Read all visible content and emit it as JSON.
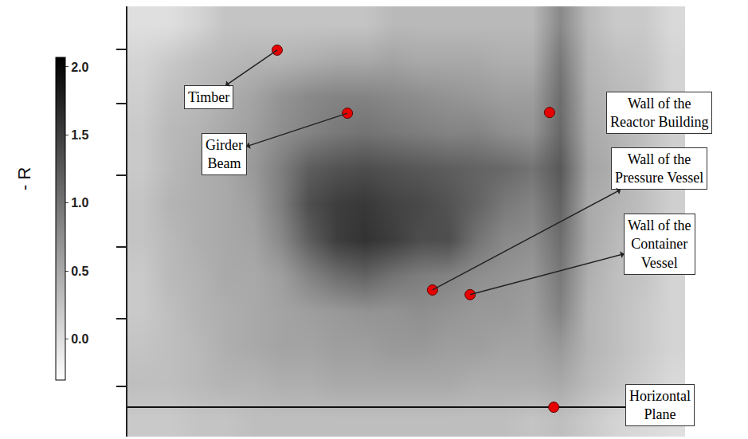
{
  "chart_data": {
    "type": "heatmap",
    "x": [
      0,
      1,
      2,
      3,
      4,
      5,
      6,
      7,
      8,
      9,
      10,
      11,
      12,
      13,
      14,
      15,
      16,
      17,
      18,
      19
    ],
    "y": [
      11,
      10,
      9,
      8,
      7,
      6,
      5,
      4,
      3,
      2,
      1,
      0
    ],
    "z": [
      [
        0.0,
        0.0,
        0.1,
        0.25,
        0.25,
        0.25,
        0.25,
        0.25,
        0.25,
        0.35,
        0.35,
        0.35,
        0.35,
        0.35,
        0.35,
        0.8,
        0.35,
        0.2,
        0.2,
        0.05
      ],
      [
        0.1,
        0.2,
        0.3,
        0.35,
        0.4,
        0.4,
        0.45,
        0.5,
        0.5,
        0.55,
        0.5,
        0.5,
        0.5,
        0.45,
        0.45,
        0.95,
        0.4,
        0.3,
        0.25,
        0.1
      ],
      [
        0.15,
        0.3,
        0.35,
        0.45,
        0.55,
        0.7,
        0.8,
        0.85,
        0.85,
        0.8,
        0.75,
        0.7,
        0.65,
        0.6,
        0.6,
        1.05,
        0.45,
        0.35,
        0.3,
        0.1
      ],
      [
        0.2,
        0.35,
        0.4,
        0.5,
        0.6,
        0.75,
        0.85,
        0.95,
        1.0,
        0.95,
        0.9,
        0.85,
        0.85,
        0.75,
        0.7,
        1.1,
        0.5,
        0.4,
        0.3,
        0.15
      ],
      [
        0.2,
        0.35,
        0.45,
        0.5,
        0.65,
        0.9,
        1.2,
        1.3,
        1.35,
        1.3,
        1.25,
        1.2,
        1.15,
        1.1,
        1.0,
        1.25,
        0.55,
        0.45,
        0.3,
        0.15
      ],
      [
        0.25,
        0.4,
        0.45,
        0.5,
        0.6,
        0.9,
        1.35,
        1.5,
        1.55,
        1.45,
        1.4,
        1.3,
        1.15,
        0.95,
        0.85,
        1.15,
        0.5,
        0.4,
        0.3,
        0.15
      ],
      [
        0.25,
        0.35,
        0.45,
        0.5,
        0.55,
        0.8,
        1.2,
        1.5,
        1.6,
        1.5,
        1.35,
        1.35,
        1.0,
        0.8,
        0.75,
        1.05,
        0.5,
        0.35,
        0.25,
        0.1
      ],
      [
        0.2,
        0.35,
        0.4,
        0.5,
        0.5,
        0.6,
        0.85,
        1.05,
        1.15,
        1.0,
        0.9,
        0.85,
        0.75,
        0.7,
        0.65,
        0.95,
        0.45,
        0.3,
        0.25,
        0.1
      ],
      [
        0.2,
        0.3,
        0.4,
        0.45,
        0.5,
        0.55,
        0.6,
        0.65,
        0.7,
        0.7,
        0.75,
        0.7,
        0.65,
        0.65,
        0.6,
        0.85,
        0.4,
        0.3,
        0.2,
        0.1
      ],
      [
        0.25,
        0.3,
        0.35,
        0.45,
        0.5,
        0.55,
        0.55,
        0.6,
        0.6,
        0.65,
        0.65,
        0.6,
        0.6,
        0.55,
        0.55,
        0.65,
        0.4,
        0.3,
        0.2,
        0.1
      ],
      [
        0.3,
        0.3,
        0.35,
        0.4,
        0.4,
        0.45,
        0.45,
        0.5,
        0.5,
        0.5,
        0.5,
        0.5,
        0.45,
        0.45,
        0.45,
        0.5,
        0.35,
        0.25,
        0.15,
        0.05
      ],
      [
        0.2,
        0.2,
        0.25,
        0.25,
        0.3,
        0.3,
        0.3,
        0.3,
        0.3,
        0.3,
        0.3,
        0.3,
        0.3,
        0.3,
        0.25,
        0.3,
        0.2,
        0.1,
        0.05,
        0.0
      ]
    ],
    "xlim": [
      -0.5,
      19.5
    ],
    "ylim": [
      -0.5,
      11.5
    ],
    "yticks": [
      10.3,
      8.8,
      6.8,
      4.8,
      2.8,
      0.9
    ],
    "tick_labels": false,
    "colors": [
      "#ffffff",
      "#000000"
    ],
    "colorbar": {
      "label": "- R",
      "zlim": [
        -0.3,
        2.07
      ],
      "zticks": [
        {
          "value": 2,
          "label": "2.0"
        },
        {
          "value": 1.5,
          "label": "1.5"
        },
        {
          "value": 1,
          "label": "1.0"
        },
        {
          "value": 0.5,
          "label": "0.5"
        },
        {
          "value": 0,
          "label": "0.0"
        }
      ]
    },
    "reference_line_y": 0.32,
    "annotations": [
      {
        "text": "Timber",
        "x": 4.87,
        "y": 10.28
      },
      {
        "text": "Girder\nBeam",
        "x": 7.39,
        "y": 8.52
      },
      {
        "text": "Wall of the\nReactor Building",
        "x": 14.64,
        "y": 8.54
      },
      {
        "text": "Wall of the\nPressure Vessel",
        "x": 10.44,
        "y": 3.59
      },
      {
        "text": "Wall of the\nContainer\nVessel",
        "x": 11.79,
        "y": 3.46
      },
      {
        "text": "Horizontal\nPlane",
        "x": 14.79,
        "y": 0.32
      }
    ]
  }
}
